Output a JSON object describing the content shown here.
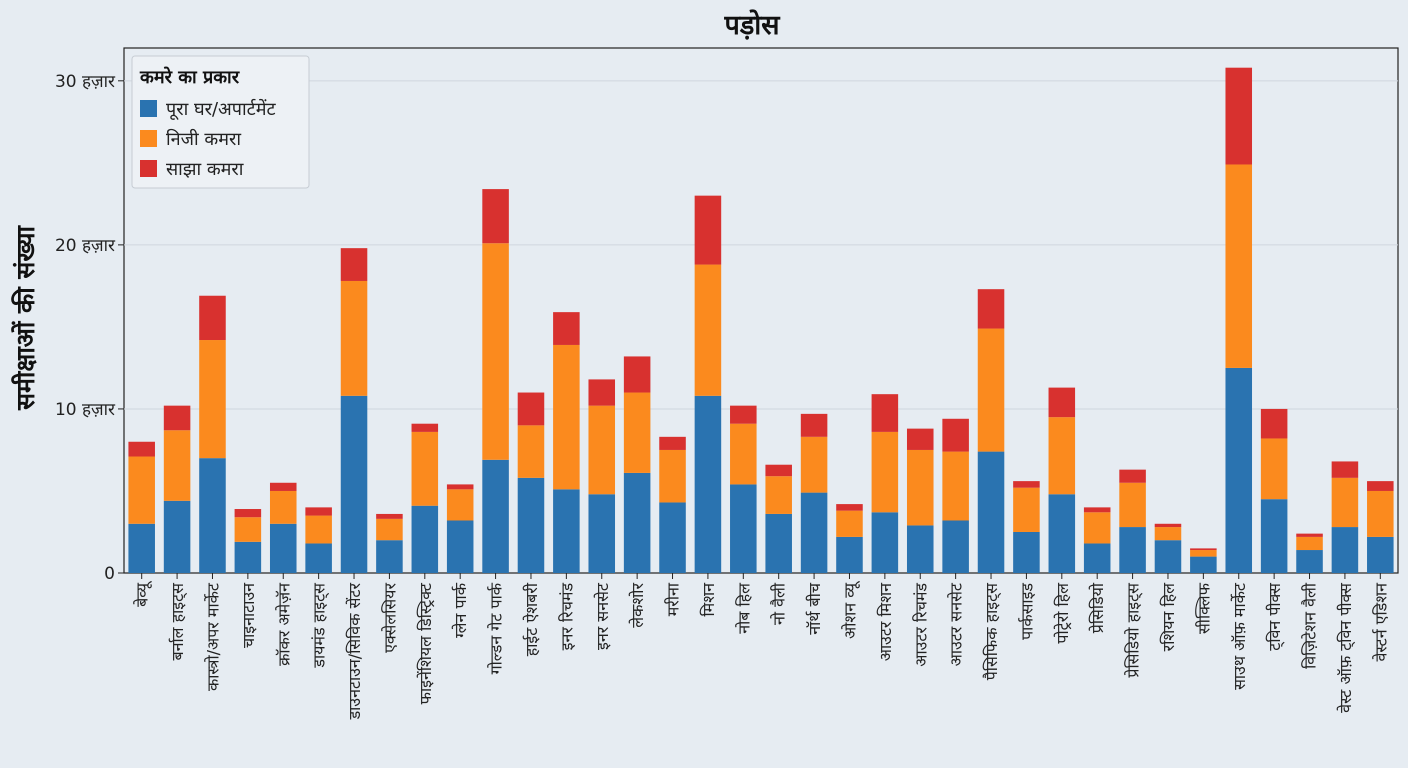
{
  "chart_data": {
    "type": "bar",
    "stacked": true,
    "title": "पड़ोस",
    "xlabel": "",
    "ylabel": "समीक्षाओं की संख्या",
    "ylim": [
      0,
      32000
    ],
    "yticks": [
      0,
      10000,
      20000,
      30000
    ],
    "ytick_labels": [
      "0",
      "10 हज़ार",
      "20 हज़ार",
      "30 हज़ार"
    ],
    "grid": true,
    "legend": {
      "title": "कमरे का प्रकार",
      "position": "top-left"
    },
    "categories": [
      "बेव्यू",
      "बर्नाल हाइट्स",
      "कास्त्रो/अपर मार्केट",
      "चाइनाटाउन",
      "क्रॉकर अमेज़ॅन",
      "डायमंड हाइट्स",
      "डाउनटाउन/सिविक सेंटर",
      "एक्सेलसियर",
      "फाइनेंशियल डिस्ट्रिक्ट",
      "ग्लेन पार्क",
      "गोल्डन गेट पार्क",
      "हाईट ऐशबरी",
      "इनर रिचमंड",
      "इनर सनसेट",
      "लेकशोर",
      "मरीना",
      "मिशन",
      "नोब हिल",
      "नो वैली",
      "नॉर्थ बीच",
      "ओशन व्यू",
      "आउटर मिशन",
      "आउटर रिचमंड",
      "आउटर सनसेट",
      "पैसिफिक हाइट्स",
      "पार्कसाइड",
      "पोट्रेरो हिल",
      "प्रेसिडियो",
      "प्रेसिडियो हाइट्स",
      "रशियन हिल",
      "सीक्लिफ",
      "साउथ ऑफ़ मार्केट",
      "ट्विन पीक्स",
      "विज़िटेशन वैली",
      "वेस्ट ऑफ़ ट्विन पीक्स",
      "वेस्टर्न एडिशन"
    ],
    "series": [
      {
        "name": "पूरा घर/अपार्टमेंट",
        "color": "#2a73b0",
        "values": [
          3000,
          4400,
          7000,
          1900,
          3000,
          1800,
          10800,
          2000,
          4100,
          3200,
          6900,
          5800,
          5100,
          4800,
          6100,
          4300,
          10800,
          5400,
          3600,
          4900,
          2200,
          3700,
          2900,
          3200,
          7400,
          2500,
          4800,
          1800,
          2800,
          2000,
          1000,
          12500,
          4500,
          1400,
          2800,
          2200
        ]
      },
      {
        "name": "निजी कमरा",
        "color": "#fb8a1e",
        "values": [
          4100,
          4300,
          7200,
          1500,
          2000,
          1700,
          7000,
          1300,
          4500,
          1900,
          13200,
          3200,
          8800,
          5400,
          4900,
          3200,
          8000,
          3700,
          2300,
          3400,
          1600,
          4900,
          4600,
          4200,
          7500,
          2700,
          4700,
          1900,
          2700,
          800,
          400,
          12400,
          3700,
          800,
          3000,
          2800
        ]
      },
      {
        "name": "साझा कमरा",
        "color": "#d8312f",
        "values": [
          900,
          1500,
          2700,
          500,
          500,
          500,
          2000,
          300,
          500,
          300,
          3300,
          2000,
          2000,
          1600,
          2200,
          800,
          4200,
          1100,
          700,
          1400,
          400,
          2300,
          1300,
          2000,
          2400,
          400,
          1800,
          300,
          800,
          200,
          100,
          5900,
          1800,
          200,
          1000,
          600
        ]
      }
    ]
  }
}
